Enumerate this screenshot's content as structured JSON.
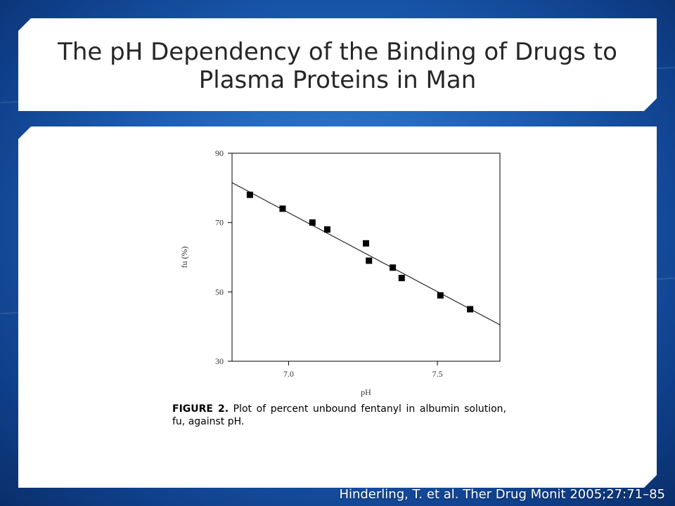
{
  "slide": {
    "title": "The pH Dependency of the Binding of Drugs to Plasma Proteins in Man",
    "caption_label": "FIGURE 2.",
    "caption_text": " Plot of percent unbound fentanyl in albumin solution, fu, against pH.",
    "citation": "Hinderling, T. et al. Ther Drug Monit 2005;27:71–85"
  },
  "chart_data": {
    "type": "scatter",
    "title": "",
    "xlabel": "pH",
    "ylabel": "fu (%)",
    "xlim": [
      6.81,
      7.71
    ],
    "ylim": [
      30,
      90
    ],
    "x_ticks": [
      7.0,
      7.5
    ],
    "x_tick_labels": [
      "7.0",
      "7.5"
    ],
    "y_ticks": [
      30,
      50,
      70,
      90
    ],
    "y_tick_labels": [
      "30",
      "50",
      "70",
      "90"
    ],
    "grid": false,
    "legend": "none",
    "series": [
      {
        "x": [
          6.87,
          6.98,
          7.08,
          7.13,
          7.26,
          7.27,
          7.35,
          7.38,
          7.51,
          7.61
        ],
        "y": [
          78,
          74,
          70,
          68,
          64,
          59,
          57,
          54,
          49,
          45
        ]
      }
    ],
    "fit_line": {
      "x": [
        6.81,
        7.71
      ],
      "y": [
        81.5,
        40.5
      ]
    }
  }
}
